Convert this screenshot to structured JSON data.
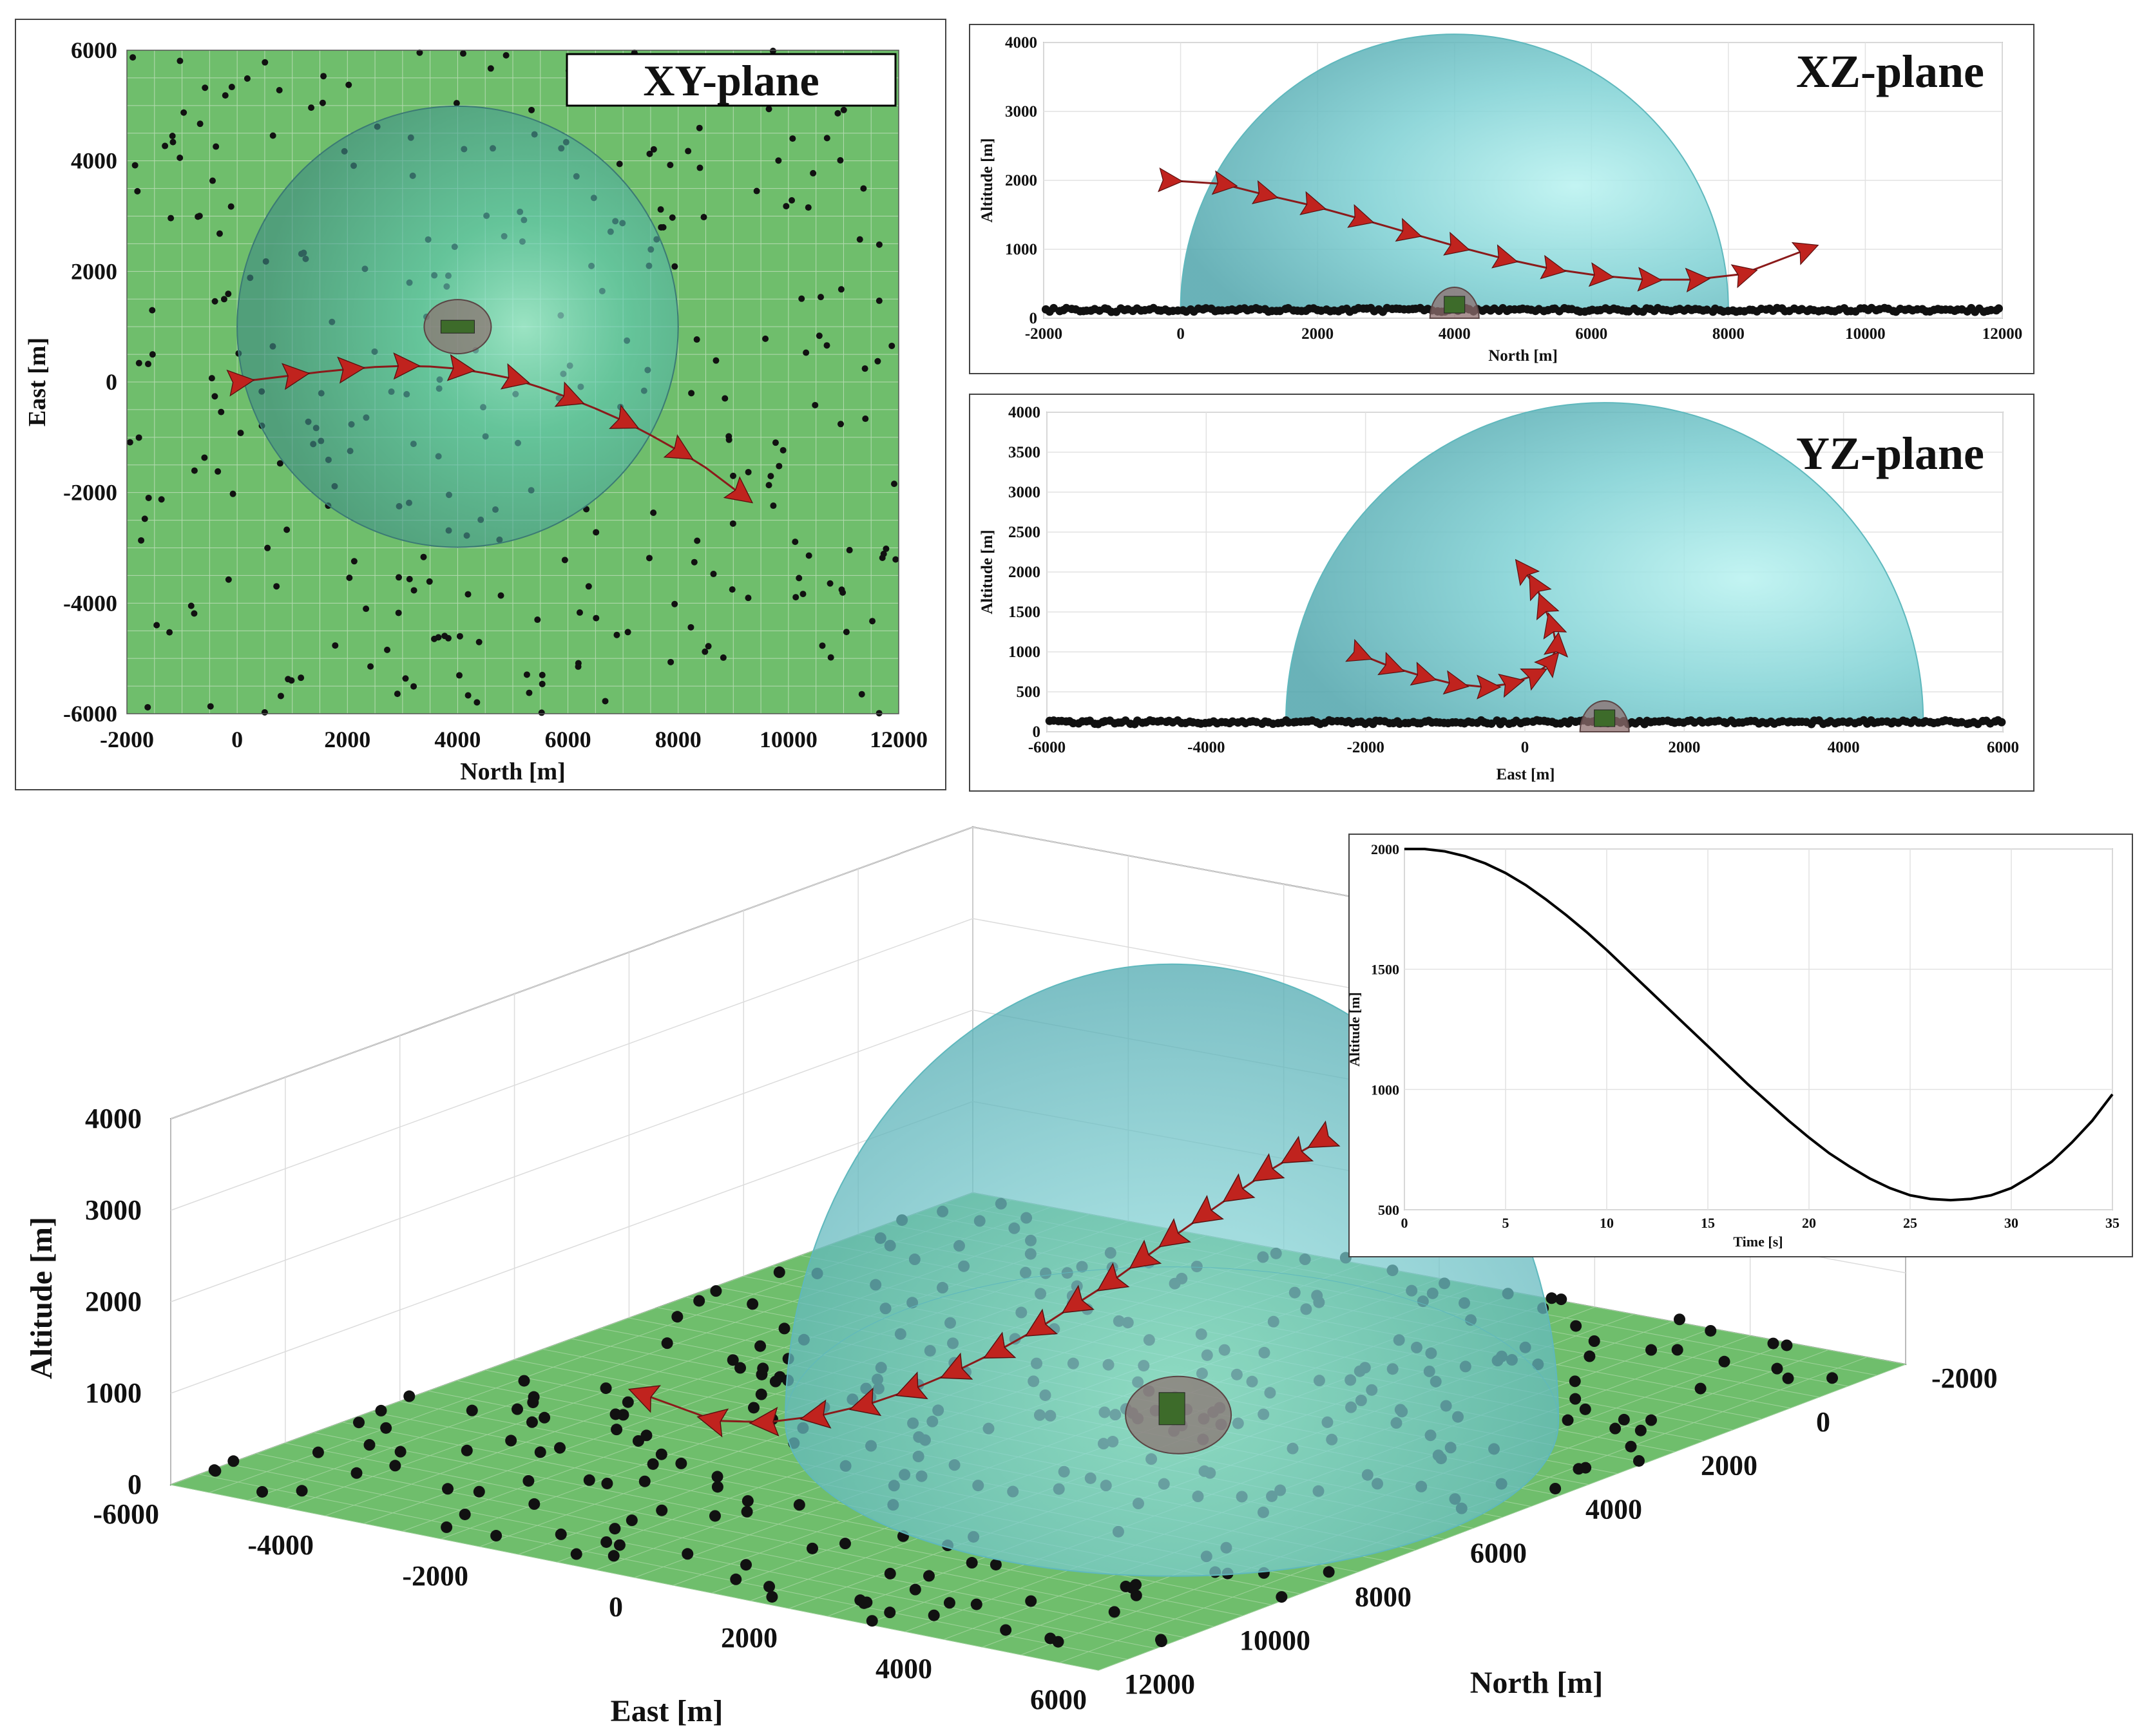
{
  "colors": {
    "ground": "#6fbe6c",
    "dome": "#7fd3d6",
    "domeEdge": "#5fb8bd",
    "tree": "#111111",
    "trajectory": "#8b1a1a",
    "aircraft": "#c0231e",
    "target": "#8d6e6e"
  },
  "chart_data": [
    {
      "id": "xy",
      "type": "scatter",
      "title": "XY-plane",
      "xlabel": "North [m]",
      "ylabel": "East [m]",
      "xlim": [
        -2000,
        12000
      ],
      "ylim": [
        -6000,
        6000
      ],
      "xticks": [
        "-2000",
        "0",
        "2000",
        "4000",
        "6000",
        "8000",
        "10000",
        "12000"
      ],
      "yticks": [
        "-6000",
        "-4000",
        "-2000",
        "0",
        "2000",
        "4000",
        "6000"
      ],
      "dome": {
        "north": 4000,
        "east": 1000,
        "radius": 4000
      },
      "target": {
        "north": 4000,
        "east": 1000
      },
      "trajectory": [
        [
          0,
          0
        ],
        [
          500,
          60
        ],
        [
          1000,
          120
        ],
        [
          1500,
          180
        ],
        [
          2000,
          230
        ],
        [
          2500,
          270
        ],
        [
          3000,
          290
        ],
        [
          3500,
          280
        ],
        [
          4000,
          240
        ],
        [
          4500,
          160
        ],
        [
          5000,
          60
        ],
        [
          5500,
          -100
        ],
        [
          6000,
          -280
        ],
        [
          6500,
          -480
        ],
        [
          7000,
          -700
        ],
        [
          7500,
          -960
        ],
        [
          8000,
          -1240
        ],
        [
          8500,
          -1550
        ],
        [
          9100,
          -2000
        ]
      ]
    },
    {
      "id": "xz",
      "type": "scatter",
      "title": "XZ-plane",
      "xlabel": "North [m]",
      "ylabel": "Altitude [m]",
      "xlim": [
        -2000,
        12000
      ],
      "ylim": [
        0,
        4000
      ],
      "xticks": [
        "-2000",
        "0",
        "2000",
        "4000",
        "6000",
        "8000",
        "10000",
        "12000"
      ],
      "yticks": [
        "0",
        "1000",
        "2000",
        "3000",
        "4000"
      ],
      "dome": {
        "center": 4000,
        "radius": 4000
      },
      "trajectory": [
        [
          -200,
          2000
        ],
        [
          600,
          1950
        ],
        [
          1200,
          1800
        ],
        [
          1900,
          1640
        ],
        [
          2600,
          1450
        ],
        [
          3300,
          1250
        ],
        [
          4000,
          1050
        ],
        [
          4700,
          870
        ],
        [
          5400,
          720
        ],
        [
          6100,
          620
        ],
        [
          6800,
          560
        ],
        [
          7500,
          560
        ],
        [
          8200,
          640
        ],
        [
          9100,
          980
        ]
      ]
    },
    {
      "id": "yz",
      "type": "scatter",
      "title": "YZ-plane",
      "xlabel": "East [m]",
      "ylabel": "Altitude [m]",
      "xlim": [
        -6000,
        6000
      ],
      "ylim": [
        0,
        4000
      ],
      "xticks": [
        "-6000",
        "-4000",
        "-2000",
        "0",
        "2000",
        "4000",
        "6000"
      ],
      "yticks": [
        "0",
        "500",
        "1000",
        "1500",
        "2000",
        "2500",
        "3000",
        "3500",
        "4000"
      ],
      "dome": {
        "center": 1000,
        "radius": 4000
      },
      "trajectory": [
        [
          -2100,
          980
        ],
        [
          -1700,
          820
        ],
        [
          -1300,
          700
        ],
        [
          -900,
          600
        ],
        [
          -500,
          560
        ],
        [
          -200,
          600
        ],
        [
          100,
          700
        ],
        [
          300,
          850
        ],
        [
          400,
          1050
        ],
        [
          350,
          1300
        ],
        [
          250,
          1550
        ],
        [
          150,
          1800
        ],
        [
          0,
          2000
        ]
      ]
    },
    {
      "id": "alt",
      "type": "line",
      "title": "",
      "xlabel": "Time [s]",
      "ylabel": "Altitude [m]",
      "xlim": [
        0,
        35
      ],
      "ylim": [
        500,
        2000
      ],
      "xticks": [
        "0",
        "5",
        "10",
        "15",
        "20",
        "25",
        "30",
        "35"
      ],
      "yticks": [
        "500",
        "1000",
        "1500",
        "2000"
      ],
      "x": [
        0,
        1,
        2,
        3,
        4,
        5,
        6,
        7,
        8,
        9,
        10,
        11,
        12,
        13,
        14,
        15,
        16,
        17,
        18,
        19,
        20,
        21,
        22,
        23,
        24,
        25,
        26,
        27,
        28,
        29,
        30,
        31,
        32,
        33,
        34,
        35
      ],
      "y": [
        2000,
        2000,
        1990,
        1970,
        1940,
        1900,
        1850,
        1790,
        1725,
        1655,
        1580,
        1500,
        1420,
        1340,
        1260,
        1180,
        1100,
        1020,
        945,
        870,
        800,
        735,
        680,
        630,
        590,
        560,
        545,
        540,
        545,
        560,
        590,
        640,
        700,
        780,
        870,
        980
      ]
    },
    {
      "id": "3d",
      "type": "scatter",
      "title": "",
      "xlabel": "East [m]",
      "ylabel": "North [m]",
      "zlabel": "Altitude [m]",
      "xticks": [
        "-6000",
        "-4000",
        "-2000",
        "0",
        "2000",
        "4000",
        "6000"
      ],
      "yticks": [
        "-2000",
        "0",
        "2000",
        "4000",
        "6000",
        "8000",
        "10000",
        "12000"
      ],
      "zticks": [
        "0",
        "1000",
        "2000",
        "3000",
        "4000"
      ],
      "dome": {
        "north": 4000,
        "east": 1000,
        "radius": 4000
      },
      "trajectory": [
        [
          0,
          0,
          2000
        ],
        [
          600,
          100,
          1990
        ],
        [
          1200,
          170,
          1950
        ],
        [
          1800,
          230,
          1880
        ],
        [
          2400,
          270,
          1790
        ],
        [
          3000,
          290,
          1680
        ],
        [
          3500,
          280,
          1560
        ],
        [
          4000,
          240,
          1420
        ],
        [
          4500,
          160,
          1280
        ],
        [
          5000,
          60,
          1120
        ],
        [
          5500,
          -100,
          960
        ],
        [
          6000,
          -280,
          820
        ],
        [
          6500,
          -480,
          700
        ],
        [
          7000,
          -700,
          610
        ],
        [
          7500,
          -960,
          560
        ],
        [
          8000,
          -1240,
          560
        ],
        [
          8500,
          -1550,
          640
        ],
        [
          9100,
          -2000,
          980
        ]
      ]
    }
  ]
}
